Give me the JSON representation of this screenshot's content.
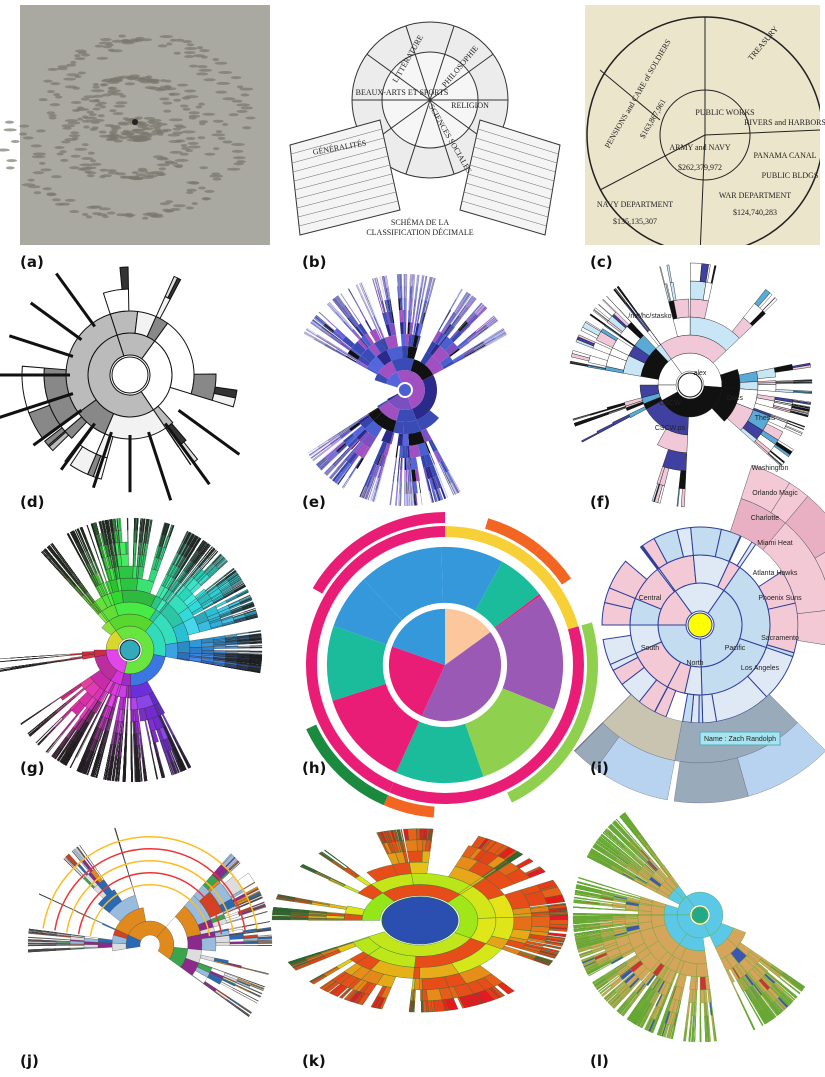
{
  "panels": [
    {
      "label": "(a)"
    },
    {
      "label": "(b)",
      "texts": [
        "PHILOSOPHIE",
        "RELIGION",
        "SCIENCES SOCIALES",
        "BEAUX-ARTS ET SPORTS",
        "LITTÉRATURE",
        "GÉNÉRALITÉS",
        "SCHÉMA DE LA",
        "CLASSIFICATION DÉCIMALE"
      ]
    },
    {
      "label": "(c)",
      "texts": [
        "PENSIONS and CARE of SOLDIERS",
        "$163,867,961",
        "ARMY and NAVY",
        "$262,379,972",
        "NAVY DEPARTMENT",
        "$135,135,307",
        "WAR DEPARTMENT",
        "$124,740,283",
        "TREASURY",
        "RIVERS and HARBORS",
        "PANAMA CANAL",
        "PUBLIC BLDGS",
        "PUBLIC WORKS"
      ]
    },
    {
      "label": "(d)"
    },
    {
      "label": "(e)"
    },
    {
      "label": "(f)",
      "texts": [
        "alex",
        "CSCW",
        "Docs",
        "Thesis",
        "CSCW.ps",
        "/net/hc/stasko"
      ]
    },
    {
      "label": "(g)"
    },
    {
      "label": "(h)"
    },
    {
      "label": "(i)",
      "texts": [
        "Central",
        "South",
        "Pacific",
        "North",
        "Los Angeles",
        "Sacramento",
        "Phoenix Suns",
        "Atlanta Hawks",
        "Miami Heat",
        "Charlotte",
        "Orlando Magic",
        "Washington",
        "Name : Zach Randolph"
      ]
    },
    {
      "label": "(j)"
    },
    {
      "label": "(k)"
    },
    {
      "label": "(l)"
    }
  ]
}
